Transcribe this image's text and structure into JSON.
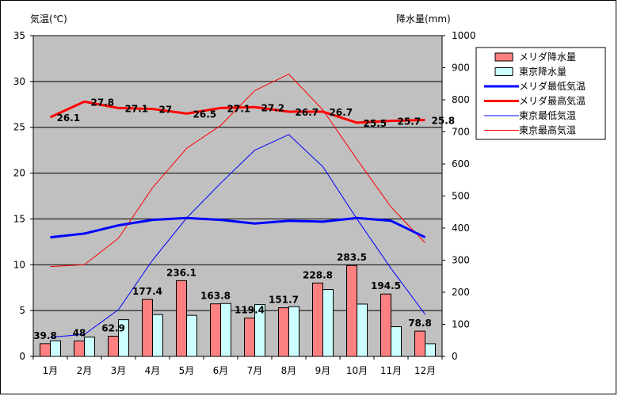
{
  "chart_data": {
    "type": "bar-line-combo",
    "categories": [
      "1月",
      "2月",
      "3月",
      "4月",
      "5月",
      "6月",
      "7月",
      "8月",
      "9月",
      "10月",
      "11月",
      "12月"
    ],
    "y_left_label": "気温(℃)",
    "y_right_label": "降水量(mm)",
    "y_left_range": [
      0,
      35
    ],
    "y_left_ticks": [
      0,
      5,
      10,
      15,
      20,
      25,
      30,
      35
    ],
    "y_right_range": [
      0,
      1000
    ],
    "y_right_ticks": [
      0,
      100,
      200,
      300,
      400,
      500,
      600,
      700,
      800,
      900,
      1000
    ],
    "plot_background": "#c0c0c0",
    "grid": "horizontal",
    "legend_position": "right",
    "bar_series": [
      {
        "name": "メリダ降水量",
        "color": "#ff8080",
        "axis": "right",
        "values": [
          39.8,
          48,
          62.9,
          177.4,
          236.1,
          163.8,
          119.4,
          151.7,
          228.8,
          283.5,
          194.5,
          78.8
        ],
        "data_labels": [
          "39.8",
          "48",
          "62.9",
          "177.4",
          "236.1",
          "163.8",
          "119.4",
          "151.7",
          "228.8",
          "283.5",
          "194.5",
          "78.8"
        ]
      },
      {
        "name": "東京降水量",
        "color": "#ccffff",
        "axis": "right",
        "values": [
          48.6,
          60.2,
          114.5,
          130.3,
          128,
          164.9,
          161.5,
          155.1,
          208.5,
          163.1,
          92.5,
          39.6
        ]
      }
    ],
    "line_series": [
      {
        "name": "メリダ最低気温",
        "color": "#0000ff",
        "width": 3,
        "axis": "left",
        "values": [
          13.0,
          13.4,
          14.3,
          14.9,
          15.1,
          14.9,
          14.5,
          14.8,
          14.7,
          15.1,
          14.8,
          13.0
        ]
      },
      {
        "name": "メリダ最高気温",
        "color": "#ff0000",
        "width": 3,
        "axis": "left",
        "values": [
          26.1,
          27.8,
          27.1,
          27,
          26.5,
          27.1,
          27.2,
          26.7,
          26.7,
          25.5,
          25.7,
          25.8
        ],
        "data_labels": [
          "26.1",
          "27.8",
          "27.1",
          "27",
          "26.5",
          "27.1",
          "27.2",
          "26.7",
          "26.7",
          "25.5",
          "25.7",
          "25.8"
        ]
      },
      {
        "name": "東京最低気温",
        "color": "#0000ff",
        "width": 1,
        "axis": "left",
        "values": [
          2.1,
          2.4,
          5.1,
          10.5,
          15.1,
          18.9,
          22.5,
          24.2,
          20.7,
          15.0,
          9.6,
          4.6
        ]
      },
      {
        "name": "東京最高気温",
        "color": "#ff0000",
        "width": 1,
        "axis": "left",
        "values": [
          9.8,
          10.0,
          12.9,
          18.4,
          22.7,
          25.2,
          29.0,
          30.8,
          26.9,
          21.5,
          16.3,
          12.4
        ]
      }
    ],
    "legend_order": [
      "メリダ降水量",
      "東京降水量",
      "メリダ最低気温",
      "メリダ最高気温",
      "東京最低気温",
      "東京最高気温"
    ]
  }
}
